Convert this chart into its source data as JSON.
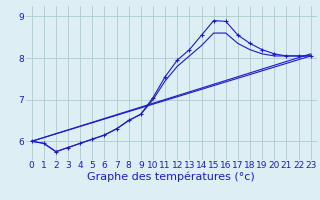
{
  "background_color": "#ddeef4",
  "grid_color": "#aacccc",
  "line_color": "#1a1acc",
  "xlabel": "Graphe des températures (°c)",
  "xlabel_fontsize": 8,
  "ylim": [
    5.55,
    9.25
  ],
  "xlim": [
    -0.5,
    23.5
  ],
  "yticks": [
    6,
    7,
    8,
    9
  ],
  "xticks": [
    0,
    1,
    2,
    3,
    4,
    5,
    6,
    7,
    8,
    9,
    10,
    11,
    12,
    13,
    14,
    15,
    16,
    17,
    18,
    19,
    20,
    21,
    22,
    23
  ],
  "tick_fontsize": 6.5,
  "series": [
    {
      "x": [
        0,
        1,
        2,
        3,
        4,
        5,
        6,
        7,
        8,
        9,
        10,
        11,
        12,
        13,
        14,
        15,
        16,
        17,
        18,
        19,
        20,
        21,
        22,
        23
      ],
      "y": [
        6.0,
        5.95,
        5.75,
        5.85,
        5.95,
        6.05,
        6.15,
        6.3,
        6.5,
        6.65,
        7.05,
        7.55,
        7.95,
        8.2,
        8.55,
        8.9,
        8.88,
        8.55,
        8.35,
        8.2,
        8.1,
        8.05,
        8.05,
        8.05
      ],
      "has_markers": true
    },
    {
      "x": [
        0,
        1,
        2,
        3,
        4,
        5,
        6,
        7,
        8,
        9,
        10,
        11,
        12,
        13,
        14,
        15,
        16,
        17,
        18,
        19,
        20,
        21,
        22,
        23
      ],
      "y": [
        6.0,
        5.95,
        5.75,
        5.85,
        5.95,
        6.05,
        6.15,
        6.3,
        6.5,
        6.65,
        7.0,
        7.45,
        7.8,
        8.05,
        8.3,
        8.6,
        8.6,
        8.35,
        8.2,
        8.1,
        8.05,
        8.05,
        8.05,
        8.05
      ],
      "has_markers": false
    },
    {
      "x": [
        0,
        23
      ],
      "y": [
        6.0,
        8.05
      ],
      "has_markers": false
    },
    {
      "x": [
        0,
        23
      ],
      "y": [
        6.0,
        8.1
      ],
      "has_markers": false
    }
  ]
}
